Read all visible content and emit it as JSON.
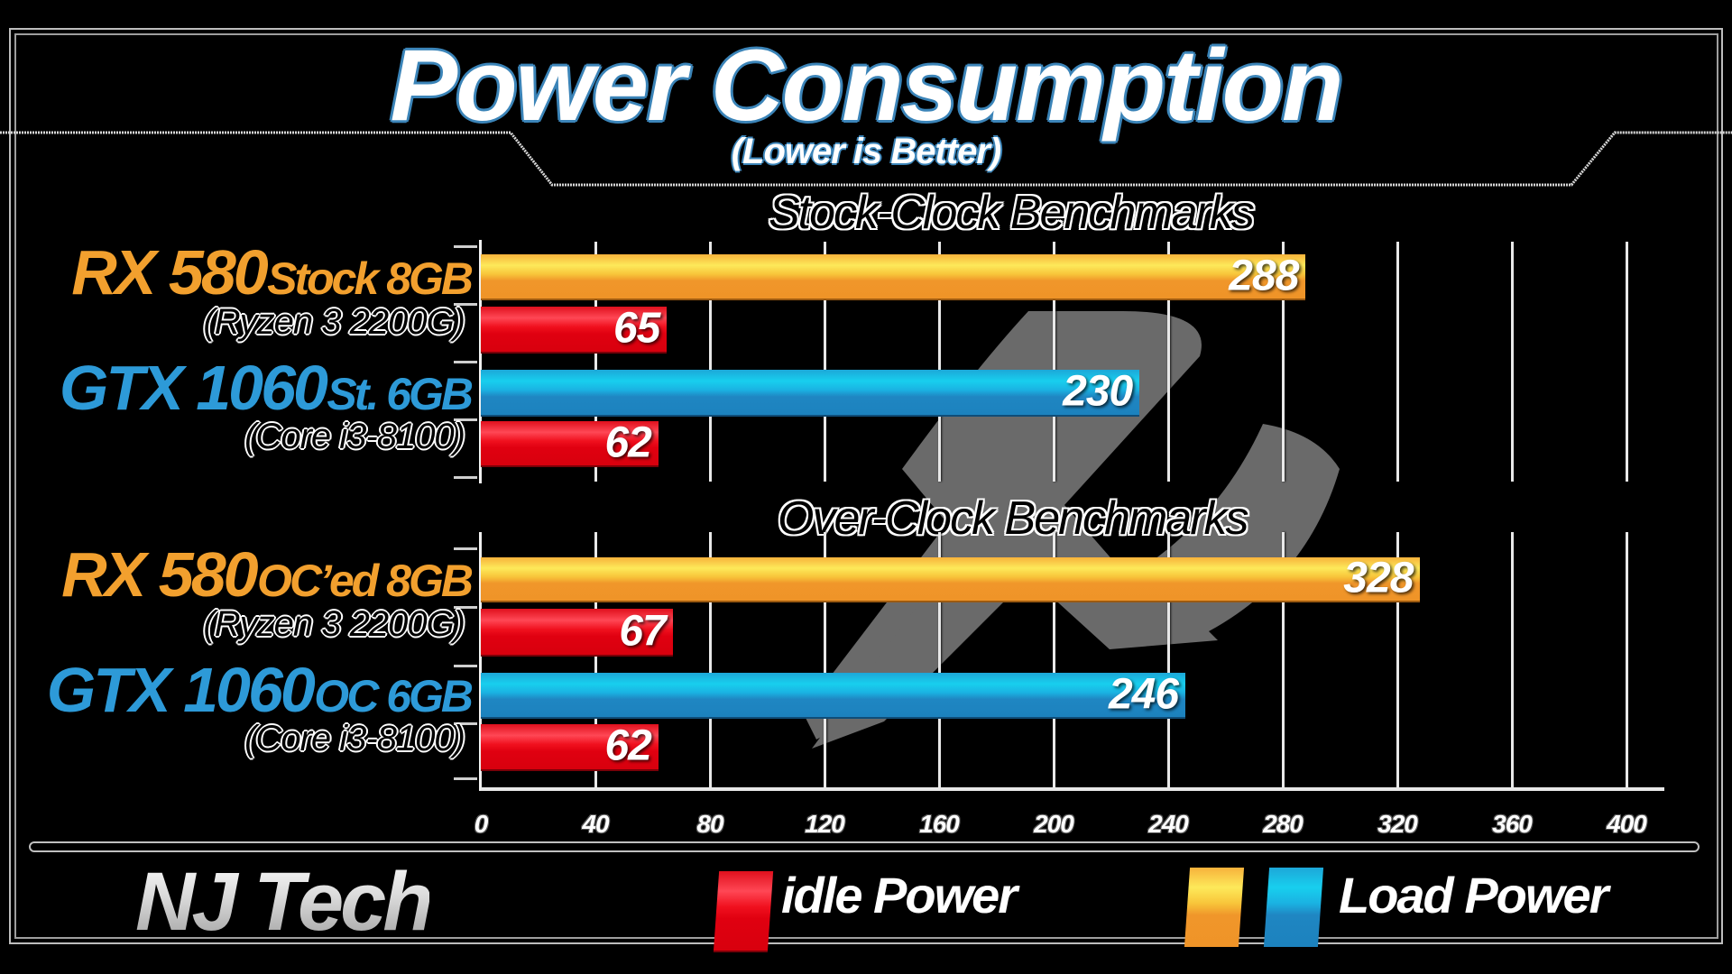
{
  "header": {
    "title": "Power Consumption",
    "subtitle": "(Lower is Better)"
  },
  "sections": [
    {
      "heading": "Stock-Clock Benchmarks",
      "rows": [
        {
          "gpu_main": "RX 580",
          "gpu_variant": "Stock 8GB",
          "cpu": "(Ryzen 3 2200G)",
          "vendor": "amd",
          "load": 288,
          "idle": 65
        },
        {
          "gpu_main": "GTX 1060",
          "gpu_variant": "St. 6GB",
          "cpu": "(Core i3-8100)",
          "vendor": "nvidia",
          "load": 230,
          "idle": 62
        }
      ]
    },
    {
      "heading": "Over-Clock Benchmarks",
      "rows": [
        {
          "gpu_main": "RX 580",
          "gpu_variant": "OC’ed 8GB",
          "cpu": "(Ryzen 3 2200G)",
          "vendor": "amd",
          "load": 328,
          "idle": 67
        },
        {
          "gpu_main": "GTX 1060",
          "gpu_variant": "OC 6GB",
          "cpu": "(Core i3-8100)",
          "vendor": "nvidia",
          "load": 246,
          "idle": 62
        }
      ]
    }
  ],
  "axis": {
    "ticks": [
      "0",
      "40",
      "80",
      "120",
      "160",
      "200",
      "240",
      "280",
      "320",
      "360",
      "400"
    ]
  },
  "footer": {
    "brand": "NJ Tech",
    "legend_idle": "idle Power",
    "legend_load": "Load Power"
  },
  "colors": {
    "idle": "#e8101e",
    "load_amd": "#f0962a",
    "load_nvidia": "#1c82be",
    "title_outline": "#3b84b8",
    "background": "#000000"
  },
  "chart_data": {
    "type": "bar",
    "orientation": "horizontal",
    "title": "Power Consumption",
    "subtitle": "(Lower is Better)",
    "categories": [
      "RX 580 Stock 8GB (Ryzen 3 2200G)",
      "GTX 1060 St. 6GB (Core i3-8100)",
      "RX 580 OC'ed 8GB (Ryzen 3 2200G)",
      "GTX 1060 OC 6GB (Core i3-8100)"
    ],
    "groups": [
      {
        "name": "Stock-Clock Benchmarks",
        "categories": [
          "RX 580 Stock 8GB (Ryzen 3 2200G)",
          "GTX 1060 St. 6GB (Core i3-8100)"
        ]
      },
      {
        "name": "Over-Clock Benchmarks",
        "categories": [
          "RX 580 OC'ed 8GB (Ryzen 3 2200G)",
          "GTX 1060 OC 6GB (Core i3-8100)"
        ]
      }
    ],
    "series": [
      {
        "name": "Load Power",
        "values": [
          288,
          230,
          328,
          246
        ]
      },
      {
        "name": "idle Power",
        "values": [
          65,
          62,
          67,
          62
        ]
      }
    ],
    "xlabel": "",
    "ylabel": "",
    "xlim": [
      0,
      400
    ],
    "xticks": [
      0,
      40,
      80,
      120,
      160,
      200,
      240,
      280,
      320,
      360,
      400
    ],
    "grid": true,
    "legend": {
      "position": "bottom",
      "entries": [
        "idle Power",
        "Load Power"
      ]
    },
    "annotations": [
      "NJ Tech"
    ]
  }
}
